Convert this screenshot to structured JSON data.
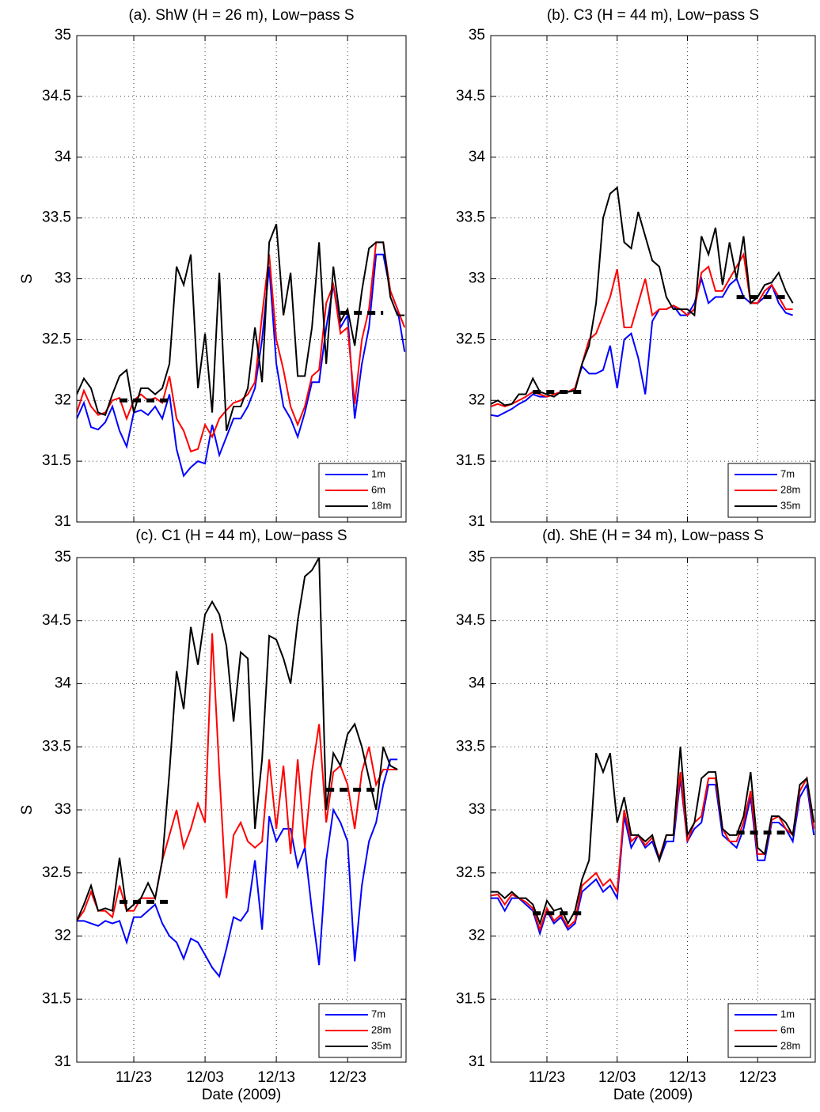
{
  "chart_data": [
    {
      "type": "line",
      "title": "(a). ShW (H = 26 m), Low−pass S",
      "ylabel": "S",
      "xlim": [
        319,
        365.2
      ],
      "ylim": [
        31,
        35
      ],
      "xticks": [
        327,
        337,
        347,
        357
      ],
      "show_xticklabels": false,
      "yticks": [
        31,
        {
          "value": 31.5,
          "label": "31.5"
        },
        32,
        {
          "value": 32.5,
          "label": "32.5"
        },
        33,
        {
          "value": 33.5,
          "label": "33.5"
        },
        34,
        {
          "value": 34.5,
          "label": "34.5"
        },
        35
      ],
      "grid": true,
      "legend": "lower right",
      "x": [
        319,
        320,
        321,
        322,
        323,
        324,
        325,
        326,
        327,
        328,
        329,
        330,
        331,
        332,
        333,
        334,
        335,
        336,
        337,
        338,
        339,
        340,
        341,
        342,
        343,
        344,
        345,
        346,
        347,
        348,
        349,
        350,
        351,
        352,
        353,
        354,
        355,
        356,
        357,
        358,
        359,
        360,
        361,
        362,
        363,
        364,
        365
      ],
      "series": [
        {
          "name": "1m",
          "color": "#0000ff",
          "values": [
            31.85,
            31.98,
            31.78,
            31.76,
            31.82,
            31.95,
            31.75,
            31.62,
            31.9,
            31.92,
            31.88,
            31.95,
            31.85,
            32.05,
            31.6,
            31.38,
            31.45,
            31.5,
            31.48,
            31.8,
            31.55,
            31.7,
            31.85,
            31.85,
            31.95,
            32.1,
            32.5,
            33.1,
            32.3,
            31.95,
            31.85,
            31.7,
            31.9,
            32.15,
            32.15,
            32.6,
            32.95,
            32.6,
            32.7,
            31.85,
            32.3,
            32.6,
            33.2,
            33.2,
            32.9,
            32.75,
            32.4
          ]
        },
        {
          "name": "6m",
          "color": "#ff0000",
          "values": [
            31.9,
            32.08,
            31.95,
            31.88,
            31.9,
            32.0,
            32.02,
            31.85,
            32.0,
            32.05,
            32.0,
            32.02,
            31.98,
            32.2,
            31.85,
            31.75,
            31.58,
            31.6,
            31.8,
            31.7,
            31.85,
            31.92,
            31.98,
            32.0,
            32.05,
            32.15,
            32.7,
            33.2,
            32.5,
            32.25,
            31.95,
            31.8,
            31.95,
            32.2,
            32.25,
            32.8,
            32.95,
            32.55,
            32.6,
            31.97,
            32.5,
            32.75,
            33.3,
            33.3,
            32.9,
            32.75,
            32.6
          ]
        },
        {
          "name": "18m",
          "color": "#000000",
          "values": [
            32.05,
            32.18,
            32.1,
            31.9,
            31.88,
            32.05,
            32.2,
            32.25,
            31.9,
            32.1,
            32.1,
            32.05,
            32.1,
            32.3,
            33.1,
            32.95,
            33.2,
            32.1,
            32.55,
            31.9,
            33.05,
            31.75,
            31.95,
            31.95,
            32.1,
            32.6,
            32.15,
            33.3,
            33.45,
            32.7,
            33.05,
            32.2,
            32.2,
            32.6,
            33.3,
            32.3,
            33.1,
            32.65,
            32.75,
            32.45,
            32.9,
            33.25,
            33.3,
            33.3,
            32.85,
            32.7,
            32.7
          ]
        }
      ],
      "reference_lines": [
        {
          "x": [
            325,
            332
          ],
          "y": 32.0
        },
        {
          "x": [
            356,
            362
          ],
          "y": 32.72
        }
      ]
    },
    {
      "type": "line",
      "title": "(b). C3 (H = 44 m), Low−pass S",
      "xlim": [
        319,
        365.2
      ],
      "ylim": [
        31,
        35
      ],
      "xticks": [
        327,
        337,
        347,
        357
      ],
      "show_xticklabels": false,
      "yticks": [
        31,
        {
          "value": 31.5,
          "label": "31.5"
        },
        32,
        {
          "value": 32.5,
          "label": "32.5"
        },
        33,
        {
          "value": 33.5,
          "label": "33.5"
        },
        34,
        {
          "value": 34.5,
          "label": "34.5"
        },
        35
      ],
      "grid": true,
      "legend": "lower right",
      "x": [
        319,
        320,
        321,
        322,
        323,
        324,
        325,
        326,
        327,
        328,
        329,
        330,
        331,
        332,
        333,
        334,
        335,
        336,
        337,
        338,
        339,
        340,
        341,
        342,
        343,
        344,
        345,
        346,
        347,
        348,
        349,
        350,
        351,
        352,
        353,
        354,
        355,
        356,
        357,
        358,
        359,
        360,
        361,
        362
      ],
      "series": [
        {
          "name": "7m",
          "color": "#0000ff",
          "values": [
            31.88,
            31.87,
            31.9,
            31.93,
            31.97,
            32.0,
            32.05,
            32.03,
            32.03,
            32.05,
            32.07,
            32.07,
            32.1,
            32.28,
            32.22,
            32.22,
            32.25,
            32.45,
            32.1,
            32.5,
            32.55,
            32.35,
            32.05,
            32.65,
            32.75,
            32.75,
            32.78,
            32.7,
            32.7,
            32.8,
            33.0,
            32.8,
            32.85,
            32.85,
            32.95,
            33.0,
            32.85,
            32.8,
            32.8,
            32.85,
            32.95,
            32.8,
            32.72,
            32.7
          ]
        },
        {
          "name": "28m",
          "color": "#ff0000",
          "values": [
            31.95,
            31.97,
            31.95,
            31.97,
            32.0,
            32.03,
            32.07,
            32.05,
            32.03,
            32.05,
            32.07,
            32.07,
            32.1,
            32.3,
            32.5,
            32.55,
            32.7,
            32.85,
            33.08,
            32.6,
            32.6,
            32.8,
            33.0,
            32.7,
            32.75,
            32.75,
            32.78,
            32.75,
            32.7,
            32.75,
            33.05,
            33.1,
            32.9,
            32.9,
            33.0,
            33.1,
            33.2,
            32.8,
            32.8,
            32.9,
            32.95,
            32.85,
            32.75,
            32.75
          ]
        },
        {
          "name": "35m",
          "color": "#000000",
          "values": [
            31.97,
            32.0,
            31.96,
            31.97,
            32.05,
            32.05,
            32.18,
            32.07,
            32.05,
            32.03,
            32.07,
            32.07,
            32.08,
            32.3,
            32.45,
            32.8,
            33.5,
            33.7,
            33.75,
            33.3,
            33.25,
            33.55,
            33.35,
            33.15,
            33.1,
            32.85,
            32.75,
            32.75,
            32.75,
            32.7,
            33.35,
            33.2,
            33.42,
            32.95,
            33.3,
            33.0,
            33.35,
            32.8,
            32.85,
            32.95,
            32.97,
            33.05,
            32.9,
            32.8
          ]
        }
      ],
      "reference_lines": [
        {
          "x": [
            325,
            332
          ],
          "y": 32.07
        },
        {
          "x": [
            354,
            361
          ],
          "y": 32.85
        }
      ]
    },
    {
      "type": "line",
      "title": "(c). C1 (H = 44 m), Low−pass S",
      "ylabel": "S",
      "xlabel": "Date (2009)",
      "xlim": [
        319,
        365.2
      ],
      "ylim": [
        31,
        35
      ],
      "xticks": [
        {
          "value": 327,
          "label": "11/23"
        },
        {
          "value": 337,
          "label": "12/03"
        },
        {
          "value": 347,
          "label": "12/13"
        },
        {
          "value": 357,
          "label": "12/23"
        }
      ],
      "show_xticklabels": true,
      "yticks": [
        31,
        {
          "value": 31.5,
          "label": "31.5"
        },
        32,
        {
          "value": 32.5,
          "label": "32.5"
        },
        33,
        {
          "value": 33.5,
          "label": "33.5"
        },
        34,
        {
          "value": 34.5,
          "label": "34.5"
        },
        35
      ],
      "grid": true,
      "legend": "lower right",
      "x": [
        319,
        320,
        321,
        322,
        323,
        324,
        325,
        326,
        327,
        328,
        329,
        330,
        331,
        332,
        333,
        334,
        335,
        336,
        337,
        338,
        339,
        340,
        341,
        342,
        343,
        344,
        345,
        346,
        347,
        348,
        349,
        350,
        351,
        352,
        353,
        354,
        355,
        356,
        357,
        358,
        359,
        360,
        361,
        362,
        363,
        364
      ],
      "series": [
        {
          "name": "7m",
          "color": "#0000ff",
          "values": [
            32.12,
            32.12,
            32.1,
            32.08,
            32.12,
            32.1,
            32.12,
            31.95,
            32.15,
            32.15,
            32.2,
            32.25,
            32.1,
            32.0,
            31.95,
            31.82,
            31.98,
            31.95,
            31.85,
            31.75,
            31.68,
            31.9,
            32.15,
            32.12,
            32.2,
            32.6,
            32.05,
            32.95,
            32.75,
            32.85,
            32.85,
            32.55,
            32.7,
            32.2,
            31.77,
            32.6,
            33.0,
            32.9,
            32.75,
            31.8,
            32.4,
            32.75,
            32.9,
            33.2,
            33.4,
            33.4
          ]
        },
        {
          "name": "28m",
          "color": "#ff0000",
          "values": [
            32.12,
            32.2,
            32.35,
            32.2,
            32.2,
            32.15,
            32.4,
            32.2,
            32.2,
            32.3,
            32.3,
            32.3,
            32.6,
            32.8,
            33.0,
            32.7,
            32.85,
            33.05,
            32.9,
            34.4,
            33.3,
            32.3,
            32.8,
            32.9,
            32.75,
            32.7,
            32.75,
            33.4,
            32.85,
            33.35,
            32.65,
            33.4,
            32.7,
            33.3,
            33.68,
            32.9,
            33.3,
            33.35,
            33.2,
            32.85,
            33.3,
            33.5,
            33.2,
            33.32,
            33.32,
            33.32
          ]
        },
        {
          "name": "35m",
          "color": "#000000",
          "values": [
            32.12,
            32.25,
            32.4,
            32.2,
            32.22,
            32.2,
            32.62,
            32.2,
            32.25,
            32.3,
            32.42,
            32.3,
            32.6,
            33.3,
            34.1,
            33.8,
            34.45,
            34.15,
            34.55,
            34.65,
            34.55,
            34.3,
            33.7,
            34.25,
            34.2,
            32.85,
            33.4,
            34.38,
            34.35,
            34.2,
            34.0,
            34.5,
            34.85,
            34.9,
            35.0,
            33.0,
            33.45,
            33.35,
            33.6,
            33.68,
            33.5,
            33.25,
            33.0,
            33.5,
            33.35,
            33.32
          ]
        }
      ],
      "reference_lines": [
        {
          "x": [
            325,
            332
          ],
          "y": 32.27
        },
        {
          "x": [
            354,
            361
          ],
          "y": 33.16
        }
      ]
    },
    {
      "type": "line",
      "title": "(d). ShE (H = 34 m), Low−pass S",
      "xlabel": "Date (2009)",
      "xlim": [
        319,
        365.2
      ],
      "ylim": [
        31,
        35
      ],
      "xticks": [
        {
          "value": 327,
          "label": "11/23"
        },
        {
          "value": 337,
          "label": "12/03"
        },
        {
          "value": 347,
          "label": "12/13"
        },
        {
          "value": 357,
          "label": "12/23"
        }
      ],
      "show_xticklabels": true,
      "yticks": [
        31,
        {
          "value": 31.5,
          "label": "31.5"
        },
        32,
        {
          "value": 32.5,
          "label": "32.5"
        },
        33,
        {
          "value": 33.5,
          "label": "33.5"
        },
        34,
        {
          "value": 34.5,
          "label": "34.5"
        },
        35
      ],
      "grid": true,
      "legend": "lower right",
      "x": [
        319,
        320,
        321,
        322,
        323,
        324,
        325,
        326,
        327,
        328,
        329,
        330,
        331,
        332,
        333,
        334,
        335,
        336,
        337,
        338,
        339,
        340,
        341,
        342,
        343,
        344,
        345,
        346,
        347,
        348,
        349,
        350,
        351,
        352,
        353,
        354,
        355,
        356,
        357,
        358,
        359,
        360,
        361,
        362,
        363,
        364,
        365
      ],
      "series": [
        {
          "name": "1m",
          "color": "#0000ff",
          "values": [
            32.3,
            32.3,
            32.2,
            32.3,
            32.3,
            32.25,
            32.2,
            32.02,
            32.2,
            32.1,
            32.15,
            32.05,
            32.1,
            32.35,
            32.4,
            32.45,
            32.35,
            32.4,
            32.3,
            32.95,
            32.7,
            32.8,
            32.7,
            32.75,
            32.6,
            32.75,
            32.75,
            33.25,
            32.75,
            32.85,
            32.9,
            33.2,
            33.2,
            32.8,
            32.75,
            32.7,
            32.85,
            33.1,
            32.6,
            32.6,
            32.9,
            32.9,
            32.85,
            32.75,
            33.1,
            33.2,
            32.8
          ]
        },
        {
          "name": "6m",
          "color": "#ff0000",
          "values": [
            32.32,
            32.33,
            32.25,
            32.33,
            32.3,
            32.27,
            32.22,
            32.05,
            32.22,
            32.12,
            32.17,
            32.07,
            32.12,
            32.4,
            32.45,
            32.5,
            32.4,
            32.45,
            32.35,
            33.0,
            32.75,
            32.8,
            32.72,
            32.78,
            32.62,
            32.8,
            32.8,
            33.3,
            32.75,
            32.9,
            32.95,
            33.25,
            33.25,
            32.85,
            32.75,
            32.75,
            32.9,
            33.15,
            32.65,
            32.65,
            32.92,
            32.95,
            32.85,
            32.8,
            33.15,
            33.25,
            32.85
          ]
        },
        {
          "name": "28m",
          "color": "#000000",
          "values": [
            32.35,
            32.35,
            32.3,
            32.35,
            32.3,
            32.3,
            32.25,
            32.1,
            32.28,
            32.2,
            32.22,
            32.1,
            32.2,
            32.45,
            32.6,
            33.45,
            33.3,
            33.45,
            32.9,
            33.1,
            32.8,
            32.8,
            32.75,
            32.8,
            32.6,
            32.8,
            32.8,
            33.5,
            32.8,
            32.9,
            33.25,
            33.3,
            33.3,
            32.85,
            32.8,
            32.8,
            32.95,
            33.3,
            32.7,
            32.65,
            32.95,
            32.95,
            32.9,
            32.8,
            33.2,
            33.25,
            32.9
          ]
        }
      ],
      "reference_lines": [
        {
          "x": [
            325,
            332
          ],
          "y": 32.18
        },
        {
          "x": [
            354,
            361
          ],
          "y": 32.82
        }
      ]
    }
  ]
}
